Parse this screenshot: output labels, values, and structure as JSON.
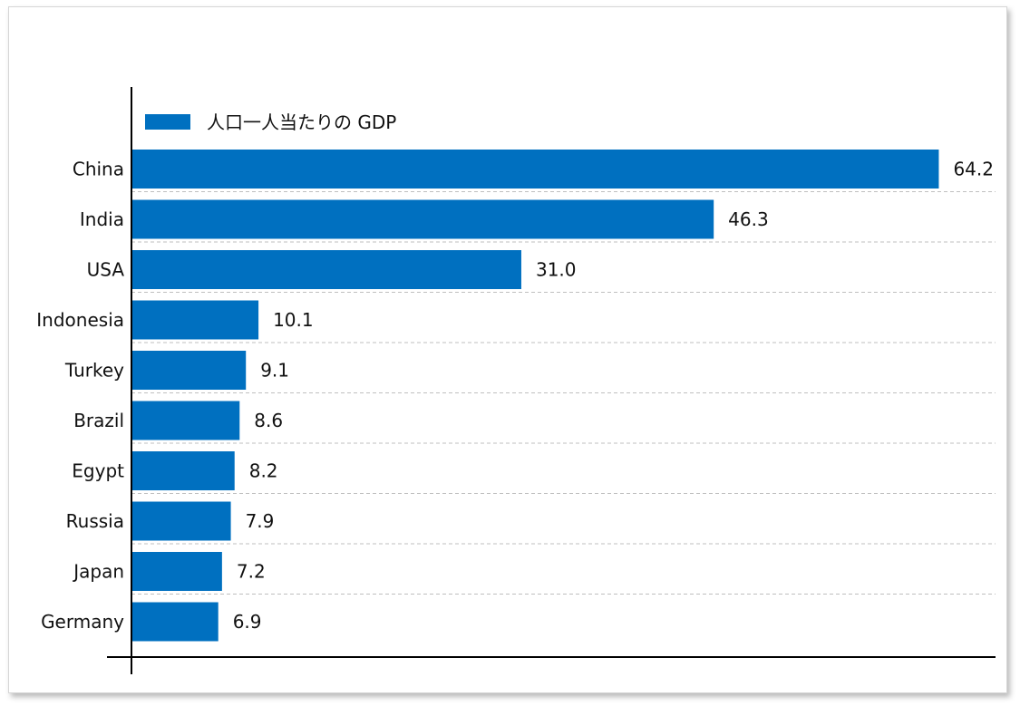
{
  "chart_data": {
    "type": "bar",
    "orientation": "horizontal",
    "categories": [
      "China",
      "India",
      "USA",
      "Indonesia",
      "Turkey",
      "Brazil",
      "Egypt",
      "Russia",
      "Japan",
      "Germany"
    ],
    "series": [
      {
        "name": "人口一人当たりの GDP",
        "values": [
          64.2,
          46.3,
          31.0,
          10.1,
          9.1,
          8.6,
          8.2,
          7.9,
          7.2,
          6.9
        ],
        "value_labels": [
          "64.2",
          "46.3",
          "31.0",
          "10.1",
          "9.1",
          "8.6",
          "8.2",
          "7.9",
          "7.2",
          "6.9"
        ]
      }
    ],
    "xlim": [
      0,
      70
    ],
    "grid": "horizontal dashed",
    "legend_position": "top-left",
    "bar_color": "#0070C0",
    "grid_color": "#bfbfbf",
    "axis_color": "#000000"
  }
}
